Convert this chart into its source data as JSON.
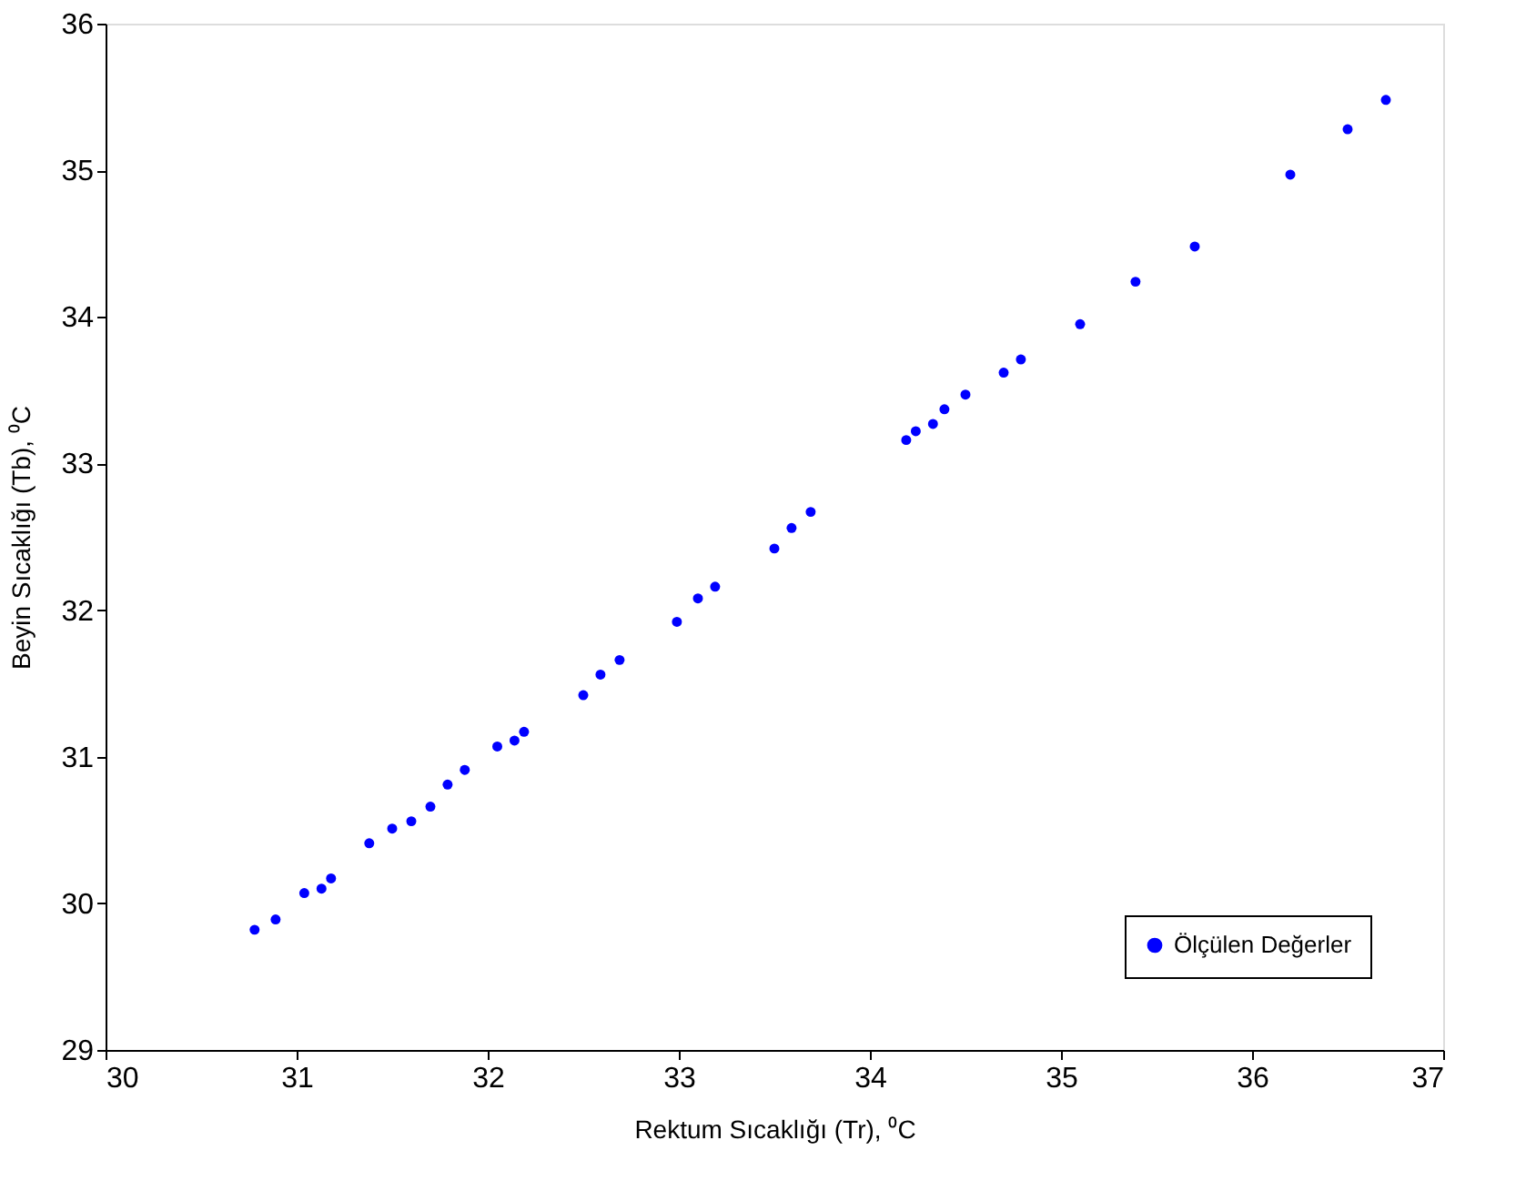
{
  "chart_data": {
    "type": "scatter",
    "xlabel": "Rektum Sıcaklığı (Tr), ⁰C",
    "ylabel": "Beyin Sıcaklığı (Tb), ⁰C",
    "x": [
      30.78,
      30.89,
      31.04,
      31.13,
      31.18,
      31.38,
      31.5,
      31.6,
      31.7,
      31.79,
      31.88,
      32.05,
      32.14,
      32.19,
      32.5,
      32.59,
      32.69,
      32.99,
      33.1,
      33.19,
      33.5,
      33.59,
      33.69,
      34.19,
      34.24,
      34.33,
      34.39,
      34.5,
      34.7,
      34.79,
      35.1,
      35.39,
      35.7,
      36.2,
      36.5,
      36.7
    ],
    "series": [
      {
        "name": "Ölçülen Değerler",
        "color": "#0000ff",
        "values": [
          29.82,
          29.89,
          30.07,
          30.1,
          30.17,
          30.41,
          30.51,
          30.56,
          30.66,
          30.81,
          30.91,
          31.07,
          31.11,
          31.17,
          31.42,
          31.56,
          31.66,
          31.92,
          32.08,
          32.16,
          32.42,
          32.56,
          32.67,
          33.16,
          33.22,
          33.27,
          33.37,
          33.47,
          33.62,
          33.71,
          33.95,
          34.24,
          34.48,
          34.97,
          35.28,
          35.48
        ]
      }
    ],
    "xlim": [
      30,
      37
    ],
    "xticks": [
      30,
      31,
      32,
      33,
      34,
      35,
      36,
      37
    ],
    "ylim": [
      29,
      36
    ],
    "yticks": [
      29,
      30,
      31,
      32,
      33,
      34,
      35,
      36
    ],
    "marker": "circle",
    "grid": false,
    "legend": "bottom right"
  }
}
